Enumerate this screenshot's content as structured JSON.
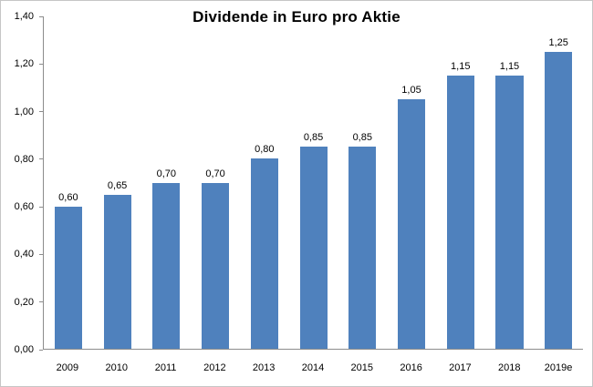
{
  "chart_data": {
    "type": "bar",
    "title": "Dividende in Euro pro Aktie",
    "categories": [
      "2009",
      "2010",
      "2011",
      "2012",
      "2013",
      "2014",
      "2015",
      "2016",
      "2017",
      "2018",
      "2019e"
    ],
    "values": [
      0.6,
      0.65,
      0.7,
      0.7,
      0.8,
      0.85,
      0.85,
      1.05,
      1.15,
      1.15,
      1.25
    ],
    "value_labels": [
      "0,60",
      "0,65",
      "0,70",
      "0,70",
      "0,80",
      "0,85",
      "0,85",
      "1,05",
      "1,15",
      "1,15",
      "1,25"
    ],
    "xlabel": "",
    "ylabel": "",
    "ylim": [
      0,
      1.4
    ],
    "y_ticks": [
      0.0,
      0.2,
      0.4,
      0.6,
      0.8,
      1.0,
      1.2,
      1.4
    ],
    "y_tick_labels": [
      "0,00",
      "0,20",
      "0,40",
      "0,60",
      "0,80",
      "1,00",
      "1,20",
      "1,40"
    ],
    "grid": false,
    "legend": false,
    "bar_color": "#4F81BD"
  }
}
